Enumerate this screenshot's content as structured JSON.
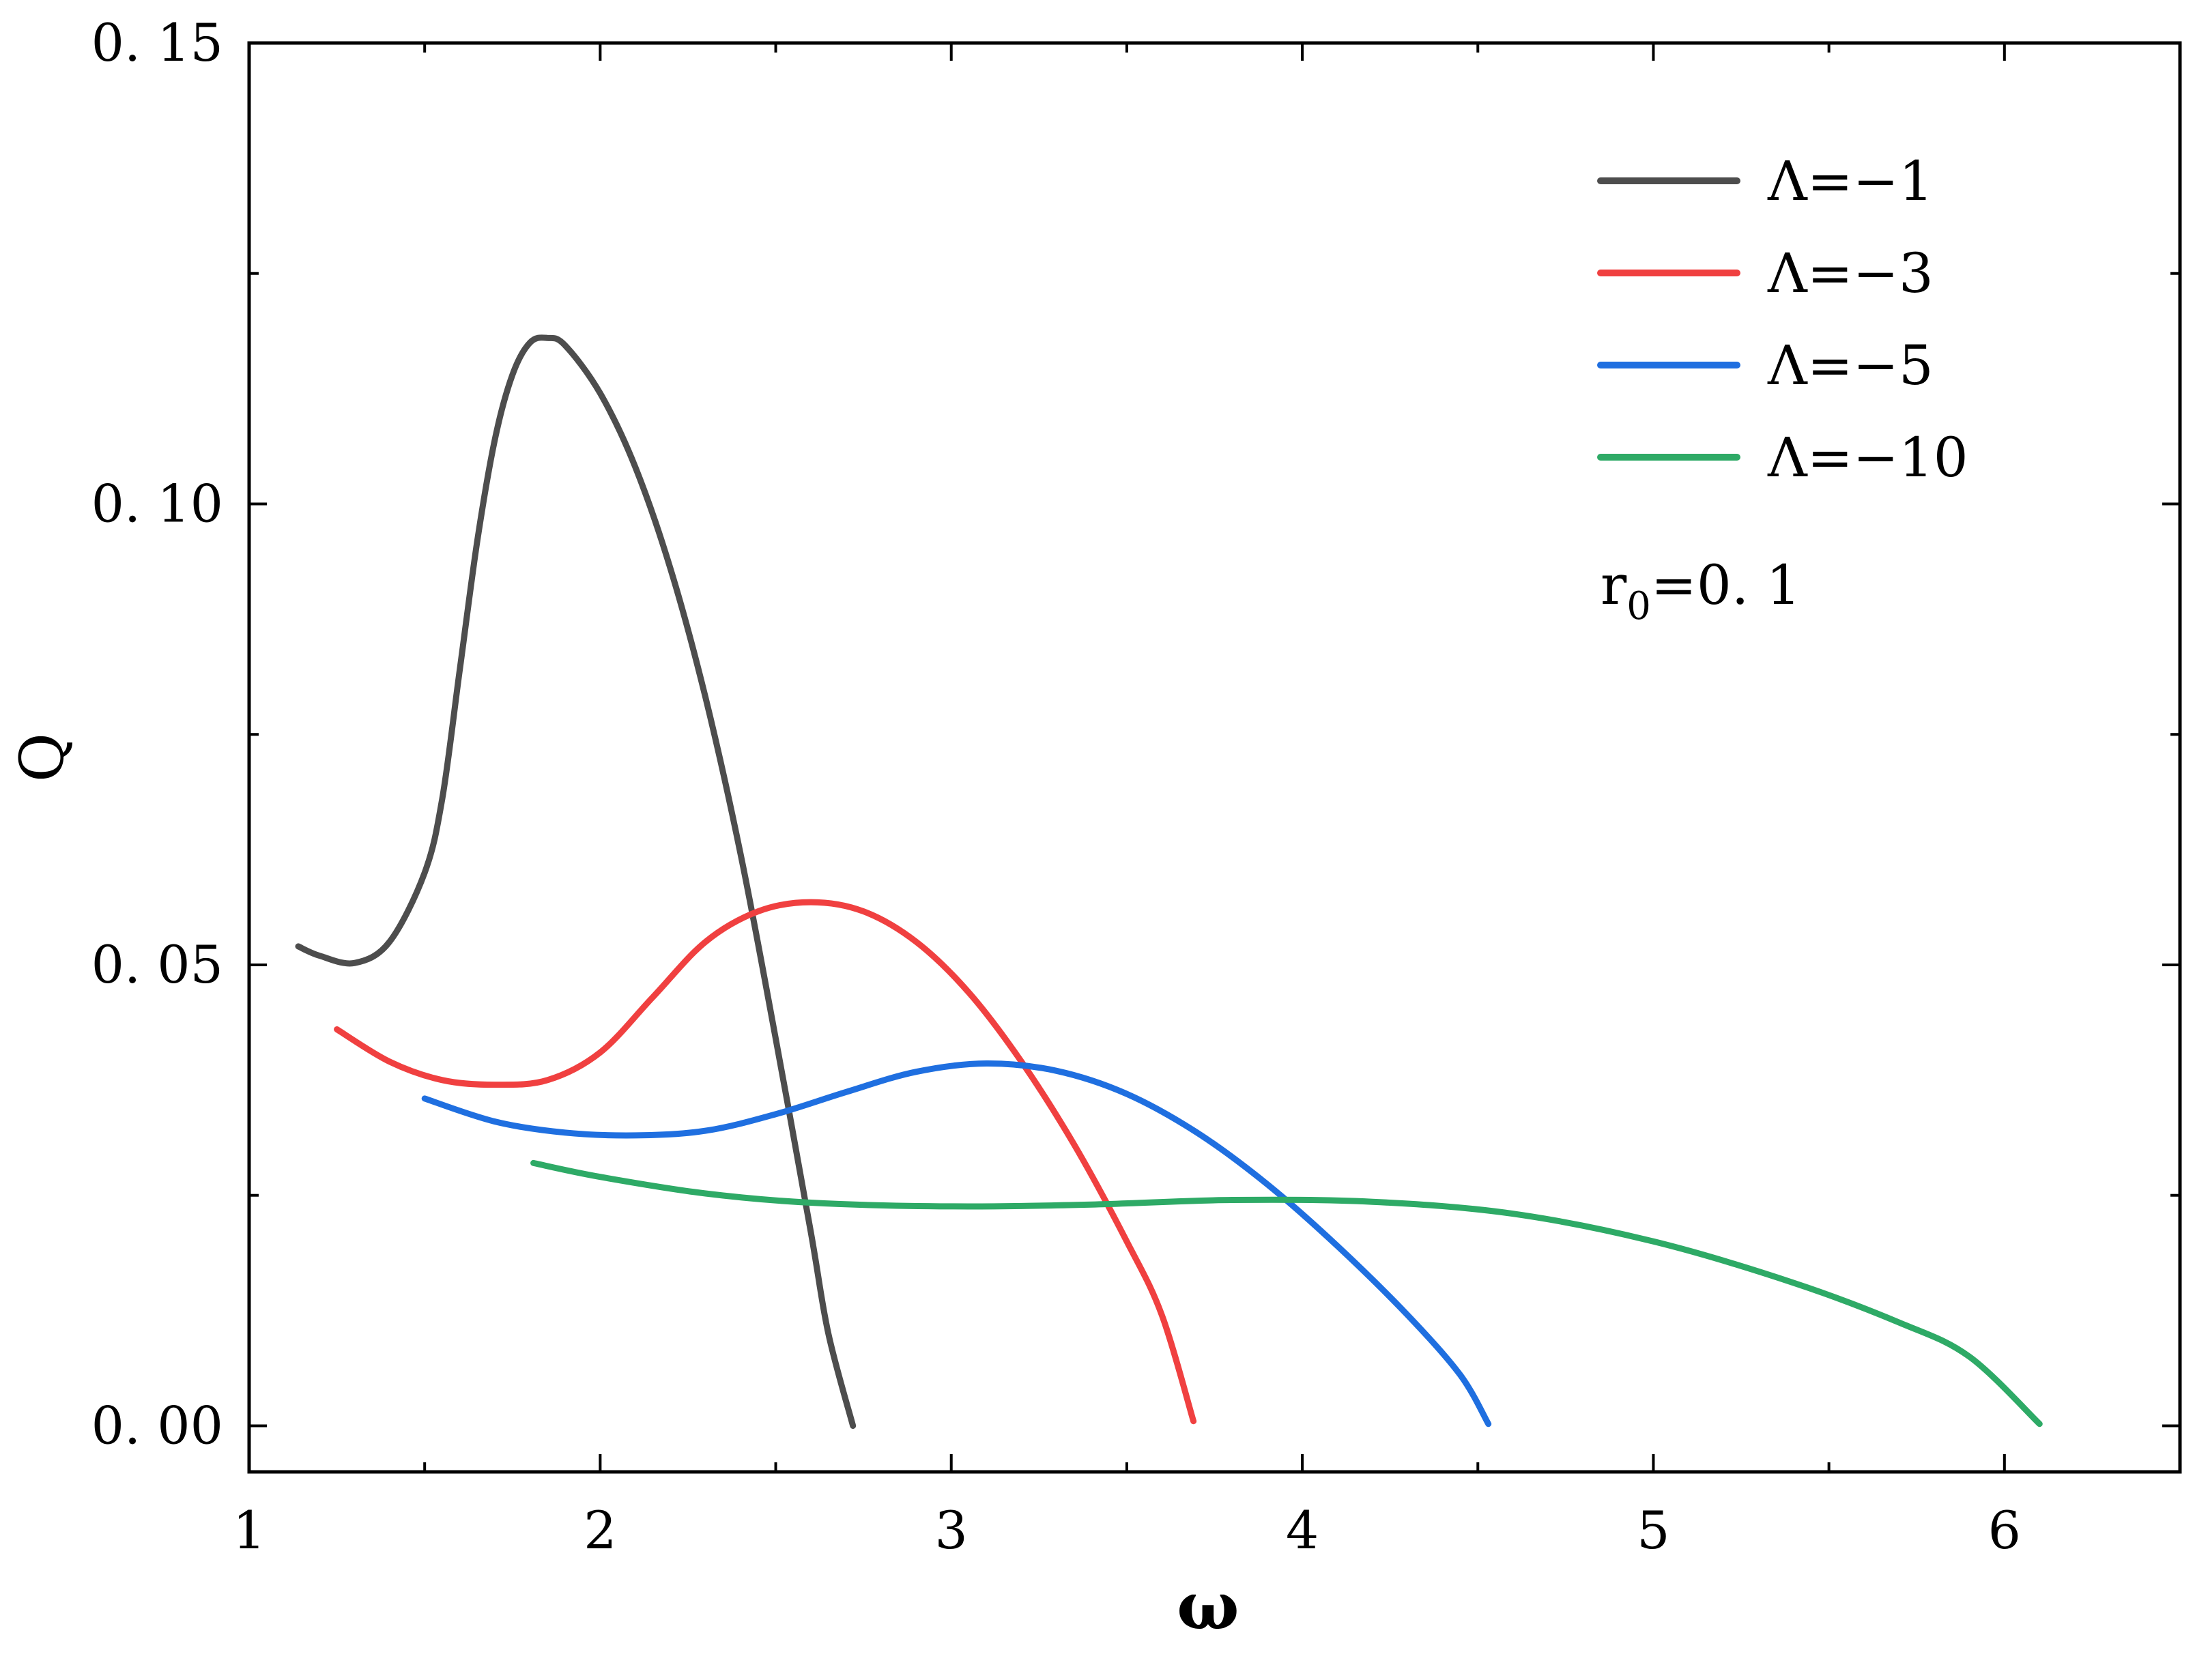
{
  "chart_data": {
    "type": "line",
    "title": "",
    "xlabel": "ω",
    "ylabel": "Q",
    "xlim": [
      1,
      6.5
    ],
    "ylim": [
      -0.005,
      0.15
    ],
    "x_ticks": [
      1,
      2,
      3,
      4,
      5,
      6
    ],
    "x_tick_labels": [
      "1",
      "2",
      "3",
      "4",
      "5",
      "6"
    ],
    "x_minor_ticks": [
      1.5,
      2.5,
      3.5,
      4.5,
      5.5
    ],
    "y_ticks": [
      0.0,
      0.05,
      0.1,
      0.15
    ],
    "y_tick_labels": [
      "0. 00",
      "0. 05",
      "0. 10",
      "0. 15"
    ],
    "y_minor_ticks": [
      0.025,
      0.075,
      0.125
    ],
    "grid": false,
    "legend_position": "top-right",
    "annotation": {
      "base": "r",
      "sub": "0",
      "rest": "=0. 1"
    },
    "series": [
      {
        "name": "Λ=−1",
        "color": "#4d4d4d",
        "points": [
          [
            1.14,
            0.052
          ],
          [
            1.2,
            0.051
          ],
          [
            1.3,
            0.0502
          ],
          [
            1.4,
            0.0525
          ],
          [
            1.5,
            0.06
          ],
          [
            1.55,
            0.068
          ],
          [
            1.6,
            0.082
          ],
          [
            1.65,
            0.096
          ],
          [
            1.7,
            0.107
          ],
          [
            1.75,
            0.114
          ],
          [
            1.8,
            0.1175
          ],
          [
            1.85,
            0.118
          ],
          [
            1.9,
            0.1172
          ],
          [
            2.0,
            0.112
          ],
          [
            2.1,
            0.104
          ],
          [
            2.2,
            0.093
          ],
          [
            2.3,
            0.079
          ],
          [
            2.4,
            0.062
          ],
          [
            2.5,
            0.042
          ],
          [
            2.6,
            0.021
          ],
          [
            2.65,
            0.01
          ],
          [
            2.72,
            0.0
          ]
        ]
      },
      {
        "name": "Λ=−3",
        "color": "#f04040",
        "points": [
          [
            1.25,
            0.043
          ],
          [
            1.4,
            0.0395
          ],
          [
            1.55,
            0.0375
          ],
          [
            1.7,
            0.037
          ],
          [
            1.85,
            0.0375
          ],
          [
            2.0,
            0.0405
          ],
          [
            2.15,
            0.0465
          ],
          [
            2.3,
            0.0525
          ],
          [
            2.45,
            0.0558
          ],
          [
            2.6,
            0.0568
          ],
          [
            2.75,
            0.0558
          ],
          [
            2.9,
            0.0525
          ],
          [
            3.05,
            0.047
          ],
          [
            3.2,
            0.0395
          ],
          [
            3.35,
            0.0305
          ],
          [
            3.5,
            0.02
          ],
          [
            3.6,
            0.012
          ],
          [
            3.69,
            0.0005
          ]
        ]
      },
      {
        "name": "Λ=−5",
        "color": "#1f6fe0",
        "points": [
          [
            1.5,
            0.0355
          ],
          [
            1.7,
            0.033
          ],
          [
            1.9,
            0.0318
          ],
          [
            2.1,
            0.0315
          ],
          [
            2.3,
            0.032
          ],
          [
            2.5,
            0.0338
          ],
          [
            2.7,
            0.0362
          ],
          [
            2.9,
            0.0384
          ],
          [
            3.1,
            0.0393
          ],
          [
            3.3,
            0.0385
          ],
          [
            3.5,
            0.036
          ],
          [
            3.7,
            0.0318
          ],
          [
            3.9,
            0.0262
          ],
          [
            4.1,
            0.0195
          ],
          [
            4.3,
            0.012
          ],
          [
            4.45,
            0.0055
          ],
          [
            4.53,
            0.0002
          ]
        ]
      },
      {
        "name": "Λ=−10",
        "color": "#2eaa66",
        "points": [
          [
            1.81,
            0.0285
          ],
          [
            2.0,
            0.027
          ],
          [
            2.3,
            0.0252
          ],
          [
            2.6,
            0.0242
          ],
          [
            3.0,
            0.0238
          ],
          [
            3.4,
            0.024
          ],
          [
            3.8,
            0.0245
          ],
          [
            4.2,
            0.0243
          ],
          [
            4.6,
            0.023
          ],
          [
            5.0,
            0.02
          ],
          [
            5.4,
            0.0155
          ],
          [
            5.7,
            0.0112
          ],
          [
            5.9,
            0.0075
          ],
          [
            6.1,
            0.0002
          ]
        ]
      }
    ]
  }
}
